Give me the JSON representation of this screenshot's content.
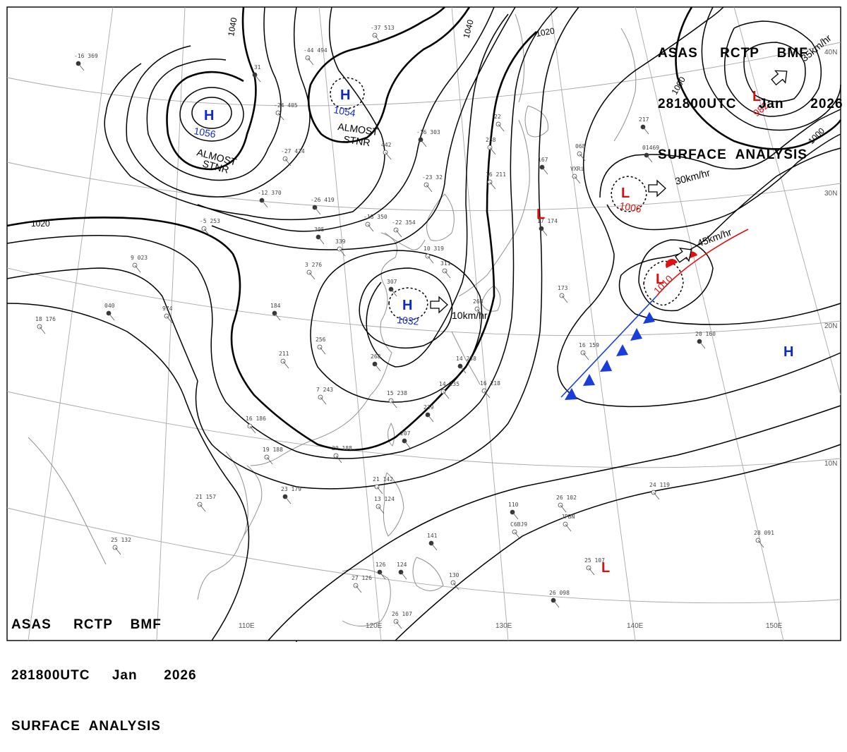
{
  "header": {
    "line1": "ASAS     RCTP    BMF",
    "line2": "281800UTC     Jan      2026",
    "line3": "SURFACE  ANALYSIS"
  },
  "colors": {
    "high": "#1028c8",
    "low": "#d81010",
    "isobar": "#000000",
    "coast": "#909090",
    "grid": "#a0a0a0",
    "cold_front": "#1a3cd8",
    "warm_front": "#e01010"
  },
  "systems": [
    {
      "type": "H",
      "pressure": "1056"
    },
    {
      "type": "H",
      "pressure": "1054"
    },
    {
      "type": "H",
      "pressure": "1032"
    },
    {
      "type": "L",
      "pressure": "982"
    },
    {
      "type": "L",
      "pressure": "1006"
    },
    {
      "type": "L",
      "pressure": "1010"
    },
    {
      "type": "H",
      "pressure": ""
    },
    {
      "type": "L",
      "pressure": ""
    },
    {
      "type": "L",
      "pressure": ""
    }
  ],
  "notes": [
    {
      "line1": "ALMOST",
      "line2": "STNR"
    },
    {
      "line1": "ALMOST",
      "line2": "STNR"
    }
  ],
  "motions": [
    "10km/hr",
    "30km/hr",
    "45km/hr",
    "35km/hr"
  ],
  "isobar_labels": [
    "1040",
    "1040",
    "1020",
    "1020",
    "1000",
    "1000"
  ],
  "lon_labels": [
    "110E",
    "120E",
    "130E",
    "140E",
    "150E"
  ],
  "lat_labels": [
    "40N",
    "30N",
    "20N",
    "10N"
  ],
  "stations": [
    {
      "v": "-16 369"
    },
    {
      "v": "-37 513"
    },
    {
      "v": "-44 494"
    },
    {
      "v": "-31"
    },
    {
      "v": "-24 405"
    },
    {
      "v": "-27 424"
    },
    {
      "v": "-16 303"
    },
    {
      "v": "442"
    },
    {
      "v": "-23 32"
    },
    {
      "v": "-26 419"
    },
    {
      "v": "-18 350"
    },
    {
      "v": "-22 354"
    },
    {
      "v": "305"
    },
    {
      "v": "339"
    },
    {
      "v": "-5 253"
    },
    {
      "v": "-12 370"
    },
    {
      "v": "9 023"
    },
    {
      "v": "3 276"
    },
    {
      "v": "307"
    },
    {
      "v": "10 319"
    },
    {
      "v": "311"
    },
    {
      "v": "040"
    },
    {
      "v": "974"
    },
    {
      "v": "18 176"
    },
    {
      "v": "184"
    },
    {
      "v": "211"
    },
    {
      "v": "256"
    },
    {
      "v": "268"
    },
    {
      "v": "7 243"
    },
    {
      "v": "15 238"
    },
    {
      "v": "229"
    },
    {
      "v": "16 186"
    },
    {
      "v": "19 188"
    },
    {
      "v": "207"
    },
    {
      "v": "20 188"
    },
    {
      "v": "21 157"
    },
    {
      "v": "23 179"
    },
    {
      "v": "21 142"
    },
    {
      "v": "13 124"
    },
    {
      "v": "141"
    },
    {
      "v": "25 132"
    },
    {
      "v": "27 126"
    },
    {
      "v": "126"
    },
    {
      "v": "26 107"
    },
    {
      "v": "130"
    },
    {
      "v": "124"
    },
    {
      "v": "16 211"
    },
    {
      "v": "238"
    },
    {
      "v": "167"
    },
    {
      "v": "22"
    },
    {
      "v": "263"
    },
    {
      "v": "14 238"
    },
    {
      "v": "14 235"
    },
    {
      "v": "16 218"
    },
    {
      "v": "17 174"
    },
    {
      "v": "173"
    },
    {
      "v": "16 159"
    },
    {
      "v": "20 160"
    },
    {
      "v": "24 119"
    },
    {
      "v": "25 107"
    },
    {
      "v": "26 098"
    },
    {
      "v": "28 091"
    },
    {
      "v": "26 102"
    },
    {
      "v": "110"
    },
    {
      "v": "C6BJ9"
    },
    {
      "v": "JPBN"
    },
    {
      "v": "01469"
    },
    {
      "v": "VXRi"
    },
    {
      "v": "068"
    },
    {
      "v": "217"
    }
  ]
}
